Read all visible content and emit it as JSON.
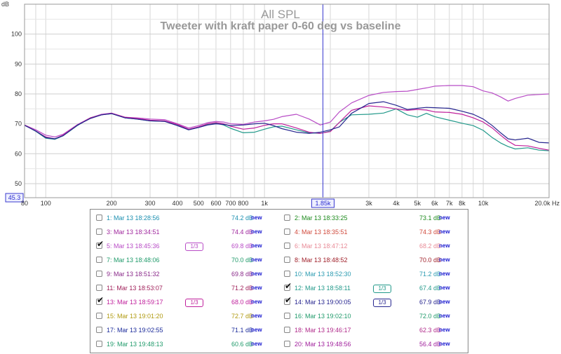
{
  "chart_data": {
    "type": "line",
    "title": "All SPL",
    "subtitle": "Tweeter with kraft paper 0-60 deg vs baseline",
    "ylabel": "dB",
    "xunit": "Hz",
    "xscale": "log",
    "xlim": [
      80,
      20000
    ],
    "ylim": [
      45.3,
      110
    ],
    "grid": true,
    "y_ticks": [
      50,
      60,
      70,
      80,
      90,
      100
    ],
    "x_tick_labels": [
      "80",
      "100",
      "200",
      "300",
      "400",
      "500",
      "600",
      "700",
      "800",
      "1k",
      "3k",
      "4k",
      "5k",
      "6k",
      "7k",
      "8k",
      "10k",
      "20.0k Hz"
    ],
    "cursor": {
      "x": 1850,
      "label": "1.85k",
      "y_readout": "45.3"
    },
    "series": [
      {
        "name": "5: Mar 13 18:45:36",
        "color": "#b84cc6",
        "x": [
          80,
          90,
          100,
          110,
          120,
          140,
          160,
          180,
          200,
          230,
          260,
          300,
          350,
          400,
          450,
          500,
          550,
          600,
          650,
          700,
          800,
          900,
          1000,
          1100,
          1200,
          1400,
          1600,
          1800,
          2000,
          2200,
          2500,
          3000,
          3500,
          4000,
          4500,
          5000,
          5500,
          6000,
          7000,
          8000,
          9000,
          10000,
          11000,
          12000,
          13000,
          14000,
          16000,
          18000,
          20000
        ],
        "values": [
          69.6,
          68.0,
          66.2,
          65.6,
          66.5,
          69.8,
          72.0,
          73.2,
          73.6,
          72.2,
          72.0,
          71.6,
          71.4,
          70.0,
          68.6,
          69.4,
          70.4,
          70.8,
          70.6,
          70.0,
          69.8,
          70.6,
          71.0,
          71.5,
          72.4,
          73.2,
          71.6,
          69.6,
          70.6,
          74.0,
          77.0,
          79.5,
          80.5,
          80.8,
          80.9,
          81.5,
          82.0,
          82.6,
          82.8,
          82.8,
          82.4,
          81.0,
          80.3,
          79.0,
          77.6,
          78.5,
          79.6,
          79.8,
          80.0
        ]
      },
      {
        "name": "12: Mar 13 18:58:11",
        "color": "#22998a",
        "x": [
          80,
          90,
          100,
          110,
          120,
          140,
          160,
          180,
          200,
          230,
          260,
          300,
          350,
          400,
          450,
          500,
          550,
          600,
          650,
          700,
          800,
          900,
          1000,
          1100,
          1200,
          1400,
          1600,
          1800,
          2000,
          2200,
          2500,
          3000,
          3500,
          4000,
          4500,
          5000,
          5500,
          6000,
          7000,
          8000,
          9000,
          10000,
          11000,
          12000,
          13000,
          14000,
          16000,
          18000,
          20000
        ],
        "values": [
          69.6,
          67.5,
          65.2,
          64.8,
          66.0,
          69.5,
          72.0,
          73.0,
          73.4,
          72.0,
          71.6,
          71.0,
          70.8,
          69.5,
          68.0,
          68.8,
          69.8,
          70.2,
          69.6,
          68.5,
          67.0,
          67.2,
          68.2,
          69.0,
          69.2,
          68.0,
          67.0,
          66.8,
          67.6,
          70.5,
          73.0,
          73.2,
          73.6,
          75.0,
          73.0,
          72.2,
          73.5,
          72.4,
          71.2,
          70.2,
          69.4,
          67.8,
          65.4,
          63.6,
          62.4,
          61.6,
          62.0,
          61.2,
          61.0
        ]
      },
      {
        "name": "13: Mar 13 18:59:17",
        "color": "#c0209c",
        "x": [
          80,
          90,
          100,
          110,
          120,
          140,
          160,
          180,
          200,
          230,
          260,
          300,
          350,
          400,
          450,
          500,
          550,
          600,
          650,
          700,
          800,
          900,
          1000,
          1100,
          1200,
          1400,
          1600,
          1800,
          2000,
          2200,
          2500,
          3000,
          3500,
          4000,
          4500,
          5000,
          5500,
          6000,
          7000,
          8000,
          9000,
          10000,
          11000,
          12000,
          13000,
          14000,
          16000,
          18000,
          20000
        ],
        "values": [
          69.6,
          67.6,
          65.6,
          65.0,
          66.2,
          69.6,
          72.0,
          73.0,
          73.5,
          72.2,
          71.8,
          71.2,
          71.0,
          69.8,
          68.2,
          69.0,
          70.0,
          70.4,
          70.0,
          69.2,
          68.2,
          68.6,
          69.5,
          70.0,
          70.0,
          68.6,
          67.2,
          66.8,
          67.4,
          70.5,
          74.5,
          76.0,
          75.6,
          75.0,
          74.5,
          74.8,
          74.6,
          74.0,
          73.8,
          73.2,
          72.0,
          70.6,
          68.6,
          66.2,
          64.2,
          62.8,
          62.6,
          61.8,
          61.2
        ]
      },
      {
        "name": "14: Mar 13 19:00:05",
        "color": "#26258f",
        "x": [
          80,
          90,
          100,
          110,
          120,
          140,
          160,
          180,
          200,
          230,
          260,
          300,
          350,
          400,
          450,
          500,
          550,
          600,
          650,
          700,
          800,
          900,
          1000,
          1100,
          1200,
          1400,
          1600,
          1800,
          2000,
          2200,
          2500,
          3000,
          3500,
          4000,
          4500,
          5000,
          5500,
          6000,
          7000,
          8000,
          9000,
          10000,
          11000,
          12000,
          13000,
          14000,
          16000,
          18000,
          20000
        ],
        "values": [
          69.5,
          67.6,
          65.4,
          65.0,
          66.0,
          69.6,
          71.8,
          73.0,
          73.4,
          72.0,
          71.6,
          71.0,
          70.8,
          69.4,
          68.0,
          68.8,
          69.6,
          70.0,
          69.8,
          69.4,
          69.6,
          70.0,
          70.2,
          69.4,
          68.4,
          67.2,
          66.8,
          67.2,
          68.0,
          69.0,
          73.5,
          76.8,
          77.4,
          76.2,
          74.8,
          75.2,
          75.5,
          75.4,
          75.2,
          74.2,
          73.2,
          71.6,
          69.4,
          67.0,
          65.0,
          64.6,
          65.2,
          63.8,
          63.6
        ]
      }
    ]
  },
  "legend": {
    "smoothing_label": "1/3",
    "new_label": "new",
    "rows": [
      [
        {
          "label": "1: Mar 13 18:28:56",
          "value": "74.2 dB",
          "color": "#1b8fb0",
          "checked": false,
          "smooth": false
        },
        {
          "label": "2: Mar 13 18:33:25",
          "value": "73.1 dB",
          "color": "#1c8a1c",
          "checked": false,
          "smooth": false
        }
      ],
      [
        {
          "label": "3: Mar 13 18:34:51",
          "value": "74.4 dB",
          "color": "#a0289e",
          "checked": false,
          "smooth": false
        },
        {
          "label": "4: Mar 13 18:35:51",
          "value": "74.3 dB",
          "color": "#d04a3c",
          "checked": false,
          "smooth": false
        }
      ],
      [
        {
          "label": "5: Mar 13 18:45:36",
          "value": "69.8 dB",
          "color": "#b84cc6",
          "checked": true,
          "smooth": true
        },
        {
          "label": "6: Mar 13 18:47:12",
          "value": "68.2 dB",
          "color": "#e88a96",
          "checked": false,
          "smooth": false
        }
      ],
      [
        {
          "label": "7: Mar 13 18:48:06",
          "value": "70.0 dB",
          "color": "#1f9a6a",
          "checked": false,
          "smooth": false
        },
        {
          "label": "8: Mar 13 18:48:52",
          "value": "70.0 dB",
          "color": "#a0202a",
          "checked": false,
          "smooth": false
        }
      ],
      [
        {
          "label": "9: Mar 13 18:51:32",
          "value": "69.8 dB",
          "color": "#8a2a8a",
          "checked": false,
          "smooth": false
        },
        {
          "label": "10: Mar 13 18:52:30",
          "value": "71.2 dB",
          "color": "#2a9ab0",
          "checked": false,
          "smooth": false
        }
      ],
      [
        {
          "label": "11: Mar 13 18:53:07",
          "value": "71.2 dB",
          "color": "#a0205a",
          "checked": false,
          "smooth": false
        },
        {
          "label": "12: Mar 13 18:58:11",
          "value": "67.4 dB",
          "color": "#22998a",
          "checked": true,
          "smooth": true
        }
      ],
      [
        {
          "label": "13: Mar 13 18:59:17",
          "value": "68.0 dB",
          "color": "#c0209c",
          "checked": true,
          "smooth": true
        },
        {
          "label": "14: Mar 13 19:00:05",
          "value": "67.9 dB",
          "color": "#26258f",
          "checked": true,
          "smooth": true
        }
      ],
      [
        {
          "label": "15: Mar 13 19:01:20",
          "value": "72.7 dB",
          "color": "#b09a10",
          "checked": false,
          "smooth": false
        },
        {
          "label": "16: Mar 13 19:02:10",
          "value": "72.0 dB",
          "color": "#1f9a6a",
          "checked": false,
          "smooth": false
        }
      ],
      [
        {
          "label": "17: Mar 13 19:02:55",
          "value": "71.1 dB",
          "color": "#1a2a9a",
          "checked": false,
          "smooth": false
        },
        {
          "label": "18: Mar 13 19:46:17",
          "value": "62.3 dB",
          "color": "#b02a8a",
          "checked": false,
          "smooth": false
        }
      ],
      [
        {
          "label": "19: Mar 13 19:48:13",
          "value": "60.6 dB",
          "color": "#1f9a6a",
          "checked": false,
          "smooth": false
        },
        {
          "label": "20: Mar 13 19:48:56",
          "value": "56.4 dB",
          "color": "#a0209c",
          "checked": false,
          "smooth": false
        }
      ]
    ]
  }
}
